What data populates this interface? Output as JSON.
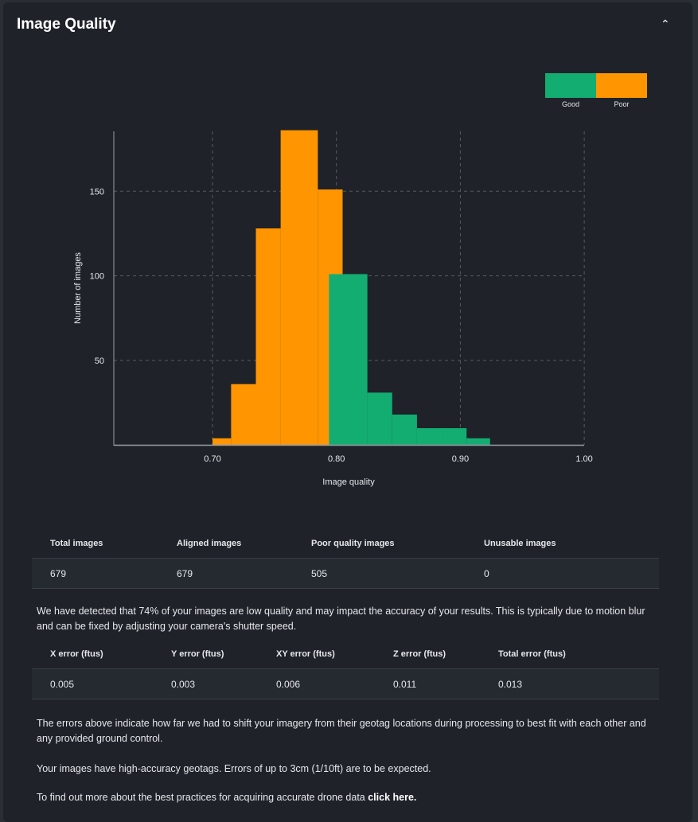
{
  "header": {
    "title": "Image Quality",
    "collapse_icon": "chevron-up-icon"
  },
  "chart_data": {
    "type": "bar",
    "xlabel": "Image quality",
    "ylabel": "Number of images",
    "xlim": [
      0.62,
      1.0
    ],
    "ylim": [
      0,
      186
    ],
    "x_ticks": [
      "0.70",
      "0.80",
      "0.90",
      "1.00"
    ],
    "y_ticks": [
      "50",
      "100",
      "150"
    ],
    "grid": true,
    "legend_placement": "top-right",
    "series": [
      {
        "name": "Good",
        "color": "#13ad72",
        "bins": [
          [
            0.794,
            0.825,
            101
          ],
          [
            0.825,
            0.845,
            31
          ],
          [
            0.845,
            0.865,
            18
          ],
          [
            0.865,
            0.885,
            10
          ],
          [
            0.885,
            0.905,
            10
          ],
          [
            0.905,
            0.924,
            4
          ]
        ]
      },
      {
        "name": "Poor",
        "color": "#ff9500",
        "bins": [
          [
            0.7,
            0.715,
            4
          ],
          [
            0.715,
            0.735,
            36
          ],
          [
            0.735,
            0.755,
            128
          ],
          [
            0.755,
            0.785,
            186
          ],
          [
            0.785,
            0.805,
            151
          ]
        ]
      }
    ]
  },
  "summary_table": {
    "headers": [
      "Total images",
      "Aligned images",
      "Poor quality images",
      "Unusable images"
    ],
    "values": [
      "679",
      "679",
      "505",
      "0"
    ]
  },
  "quality_note": "We have detected that 74% of your images are low quality and may impact the accuracy of your results. This is typically due to motion blur and can be fixed by adjusting your camera's shutter speed.",
  "error_table": {
    "headers": [
      "X error (ftus)",
      "Y error (ftus)",
      "XY error (ftus)",
      "Z error (ftus)",
      "Total error (ftus)"
    ],
    "values": [
      "0.005",
      "0.003",
      "0.006",
      "0.011",
      "0.013"
    ]
  },
  "error_note": "The errors above indicate how far we had to shift your imagery from their geotag locations during processing to best fit with each other and any provided ground control.",
  "geotag_note": "Your images have high-accuracy geotags. Errors of up to 3cm (1/10ft) are to be expected.",
  "best_practice": {
    "text": "To find out more about the best practices for acquiring accurate drone data ",
    "link": "click here."
  }
}
